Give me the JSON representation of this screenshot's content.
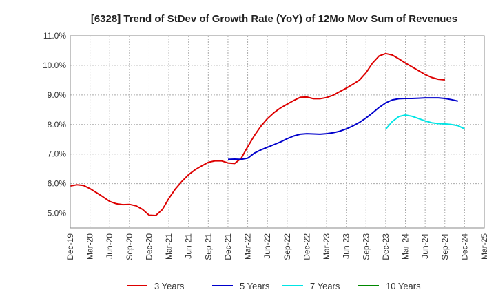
{
  "chart_data": {
    "type": "line",
    "title": "[6328]  Trend of StDev of Growth Rate (YoY) of 12Mo Mov Sum of Revenues",
    "xlabel": "",
    "ylabel": "",
    "ylim": [
      4.5,
      11.0
    ],
    "yticks": [
      "5.0%",
      "6.0%",
      "7.0%",
      "8.0%",
      "9.0%",
      "10.0%",
      "11.0%"
    ],
    "yticks_values": [
      5,
      6,
      7,
      8,
      9,
      10,
      11
    ],
    "xticks": [
      "Dec-19",
      "Mar-20",
      "Jun-20",
      "Sep-20",
      "Dec-20",
      "Mar-21",
      "Jun-21",
      "Sep-21",
      "Dec-21",
      "Mar-22",
      "Jun-22",
      "Sep-22",
      "Dec-22",
      "Mar-23",
      "Jun-23",
      "Sep-23",
      "Dec-23",
      "Mar-24",
      "Jun-24",
      "Sep-24",
      "Dec-24",
      "Mar-25"
    ],
    "grid": true,
    "legend_position": "bottom",
    "series": [
      {
        "name": "3 Years",
        "color": "#dd0000",
        "start_index": 0,
        "values": [
          5.92,
          5.96,
          5.94,
          5.83,
          5.69,
          5.55,
          5.4,
          5.32,
          5.29,
          5.3,
          5.25,
          5.13,
          4.93,
          4.92,
          5.12,
          5.5,
          5.82,
          6.08,
          6.3,
          6.47,
          6.6,
          6.72,
          6.77,
          6.77,
          6.7,
          6.68,
          6.85,
          7.25,
          7.62,
          7.94,
          8.2,
          8.4,
          8.56,
          8.69,
          8.81,
          8.92,
          8.93,
          8.87,
          8.87,
          8.91,
          8.99,
          9.11,
          9.23,
          9.36,
          9.5,
          9.75,
          10.08,
          10.32,
          10.4,
          10.35,
          10.22,
          10.08,
          9.95,
          9.82,
          9.69,
          9.59,
          9.53,
          9.51
        ]
      },
      {
        "name": "5 Years",
        "color": "#0000cc",
        "start_index": 24,
        "values": [
          6.82,
          6.83,
          6.82,
          6.86,
          7.03,
          7.14,
          7.23,
          7.32,
          7.41,
          7.52,
          7.61,
          7.67,
          7.69,
          7.68,
          7.67,
          7.69,
          7.72,
          7.77,
          7.85,
          7.95,
          8.07,
          8.22,
          8.39,
          8.58,
          8.73,
          8.83,
          8.87,
          8.88,
          8.88,
          8.89,
          8.9,
          8.9,
          8.9,
          8.88,
          8.84,
          8.79
        ]
      },
      {
        "name": "7 Years",
        "color": "#00e5e5",
        "start_index": 48,
        "values": [
          7.84,
          8.1,
          8.27,
          8.32,
          8.28,
          8.2,
          8.12,
          8.06,
          8.03,
          8.02,
          8.0,
          7.96,
          7.85
        ]
      },
      {
        "name": "10 Years",
        "color": "#008800",
        "start_index": 0,
        "values": []
      }
    ]
  }
}
